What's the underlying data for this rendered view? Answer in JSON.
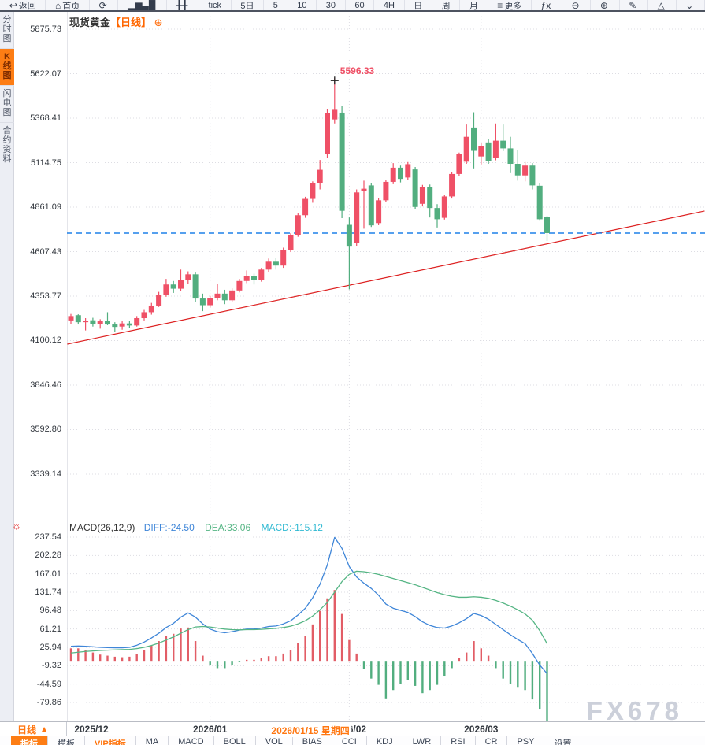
{
  "toolbar": {
    "items": [
      {
        "name": "back",
        "glyph": "↩",
        "label": "返回"
      },
      {
        "name": "home",
        "glyph": "⌂",
        "label": "首页"
      },
      {
        "name": "refresh",
        "glyph": "⟳",
        "label": ""
      },
      {
        "name": "line-chart",
        "glyph": "▂▆▄█",
        "label": ""
      },
      {
        "name": "candlestick",
        "glyph": "╂╂",
        "label": ""
      },
      {
        "name": "interval-tick",
        "glyph": "",
        "label": "tick"
      },
      {
        "name": "interval-5d",
        "glyph": "",
        "label": "5日"
      },
      {
        "name": "interval-5",
        "glyph": "",
        "label": "5"
      },
      {
        "name": "interval-10",
        "glyph": "",
        "label": "10"
      },
      {
        "name": "interval-30",
        "glyph": "",
        "label": "30"
      },
      {
        "name": "interval-60",
        "glyph": "",
        "label": "60"
      },
      {
        "name": "interval-4h",
        "glyph": "",
        "label": "4H"
      },
      {
        "name": "interval-day",
        "glyph": "",
        "label": "日"
      },
      {
        "name": "interval-week",
        "glyph": "",
        "label": "周"
      },
      {
        "name": "interval-month",
        "glyph": "",
        "label": "月"
      },
      {
        "name": "more",
        "glyph": "≡",
        "label": "更多"
      },
      {
        "name": "fx-indicator",
        "glyph": "ƒx",
        "label": ""
      },
      {
        "name": "zoom-out",
        "glyph": "⊖",
        "label": ""
      },
      {
        "name": "zoom-in",
        "glyph": "⊕",
        "label": ""
      },
      {
        "name": "draw-line",
        "glyph": "✎",
        "label": ""
      },
      {
        "name": "shape-triangle",
        "glyph": "△",
        "label": ""
      },
      {
        "name": "clipped-tool",
        "glyph": "⌄",
        "label": ""
      }
    ]
  },
  "sidebar": {
    "tabs": [
      {
        "label": "分时图",
        "active": false
      },
      {
        "label": "K线图",
        "active": true
      },
      {
        "label": "闪电图",
        "active": false
      },
      {
        "label": "合约资料",
        "active": false
      }
    ]
  },
  "header": {
    "symbol": "现货黄金",
    "period": "【日线】",
    "plus": "⊕"
  },
  "chart_data": [
    {
      "type": "candlestick",
      "title": "现货黄金 日线",
      "y_ticks": [
        5875.73,
        5622.07,
        5368.41,
        5114.75,
        4861.09,
        4607.43,
        4353.77,
        4100.12,
        3846.46,
        3592.8,
        3339.14
      ],
      "x_month_labels": [
        {
          "label": "2025/12",
          "index": 2.8,
          "line": false
        },
        {
          "label": "2026/01",
          "index": 19,
          "line": true
        },
        {
          "label": "2026/02",
          "index": 38,
          "line": true
        },
        {
          "label": "2026/03",
          "index": 56,
          "line": true
        }
      ],
      "candles": [
        [
          4215,
          4252,
          4196,
          4240
        ],
        [
          4245,
          4250,
          4192,
          4205
        ],
        [
          4205,
          4228,
          4158,
          4214
        ],
        [
          4216,
          4230,
          4180,
          4196
        ],
        [
          4196,
          4222,
          4168,
          4210
        ],
        [
          4212,
          4262,
          4188,
          4192
        ],
        [
          4192,
          4205,
          4150,
          4178
        ],
        [
          4180,
          4210,
          4162,
          4198
        ],
        [
          4198,
          4212,
          4170,
          4186
        ],
        [
          4186,
          4240,
          4180,
          4228
        ],
        [
          4228,
          4275,
          4215,
          4262
        ],
        [
          4262,
          4315,
          4248,
          4300
        ],
        [
          4300,
          4378,
          4292,
          4362
        ],
        [
          4362,
          4452,
          4350,
          4420
        ],
        [
          4420,
          4440,
          4372,
          4396
        ],
        [
          4396,
          4505,
          4385,
          4446
        ],
        [
          4446,
          4495,
          4425,
          4478
        ],
        [
          4478,
          4488,
          4322,
          4340
        ],
        [
          4340,
          4368,
          4268,
          4302
        ],
        [
          4302,
          4355,
          4288,
          4342
        ],
        [
          4342,
          4422,
          4330,
          4368
        ],
        [
          4368,
          4390,
          4308,
          4330
        ],
        [
          4330,
          4398,
          4322,
          4386
        ],
        [
          4386,
          4452,
          4375,
          4440
        ],
        [
          4440,
          4500,
          4428,
          4468
        ],
        [
          4468,
          4482,
          4420,
          4448
        ],
        [
          4448,
          4515,
          4436,
          4505
        ],
        [
          4505,
          4568,
          4492,
          4550
        ],
        [
          4550,
          4572,
          4505,
          4528
        ],
        [
          4528,
          4630,
          4515,
          4618
        ],
        [
          4618,
          4712,
          4605,
          4702
        ],
        [
          4702,
          4825,
          4692,
          4815
        ],
        [
          4815,
          4920,
          4800,
          4908
        ],
        [
          4908,
          5008,
          4886,
          4997
        ],
        [
          4997,
          5130,
          4962,
          5074
        ],
        [
          5165,
          5420,
          5140,
          5397
        ],
        [
          5361,
          5596.33,
          5338,
          5416
        ],
        [
          5400,
          5438,
          4798,
          4840
        ],
        [
          4760,
          4802,
          4392,
          4636
        ],
        [
          4657,
          4962,
          4640,
          4945
        ],
        [
          4955,
          5012,
          4738,
          4966
        ],
        [
          4985,
          4998,
          4748,
          4757
        ],
        [
          4770,
          4912,
          4758,
          4900
        ],
        [
          4900,
          5018,
          4888,
          5005
        ],
        [
          5005,
          5112,
          4992,
          5086
        ],
        [
          5086,
          5098,
          5002,
          5022
        ],
        [
          5030,
          5118,
          5018,
          5106
        ],
        [
          5076,
          5090,
          4852,
          4862
        ],
        [
          4880,
          4988,
          4865,
          4976
        ],
        [
          4976,
          4990,
          4802,
          4856
        ],
        [
          4856,
          4878,
          4745,
          4792
        ],
        [
          4800,
          4932,
          4790,
          4922
        ],
        [
          4922,
          5062,
          4910,
          5050
        ],
        [
          5050,
          5172,
          5038,
          5162
        ],
        [
          5120,
          5332,
          5108,
          5262
        ],
        [
          5315,
          5402,
          5082,
          5182
        ],
        [
          5150,
          5225,
          5105,
          5208
        ],
        [
          5230,
          5248,
          5108,
          5122
        ],
        [
          5140,
          5338,
          5128,
          5240
        ],
        [
          5240,
          5332,
          5180,
          5196
        ],
        [
          5196,
          5262,
          5055,
          5108
        ],
        [
          5108,
          5185,
          5012,
          5042
        ],
        [
          5042,
          5118,
          5008,
          5098
        ],
        [
          5098,
          5112,
          4962,
          4985
        ],
        [
          4983,
          4998,
          4788,
          4792
        ],
        [
          4806,
          4812,
          4668,
          4713
        ]
      ],
      "annotations": {
        "peak_label": "5596.33",
        "peak_index": 36,
        "peak_price": 5596.33,
        "current_price_line": 4713,
        "trendline": {
          "i1": -0.5,
          "p1": 4080,
          "i2": 86.5,
          "p2": 4839
        }
      },
      "colors": {
        "up": "#ef5066",
        "down": "#52ae7f",
        "trend": "#dd2222",
        "current": "#1e80e8",
        "grid": "#dddde3"
      }
    },
    {
      "type": "macd",
      "title": "MACD(26,12,9)",
      "values": {
        "diff": "DIFF:-24.50",
        "dea": "DEA:33.06",
        "macd": "MACD:-115.12"
      },
      "y_ticks": [
        237.54,
        202.28,
        167.01,
        131.74,
        96.48,
        61.21,
        25.94,
        -9.32,
        -44.59,
        -79.86
      ],
      "diff": [
        28,
        28.5,
        28,
        27,
        26,
        25.5,
        25,
        25,
        26,
        30,
        36,
        44,
        53,
        64,
        72,
        84,
        92,
        84,
        71,
        61,
        56,
        54,
        56,
        59,
        61,
        61,
        63,
        66,
        67,
        71,
        77,
        88,
        101,
        121,
        147,
        184,
        237,
        216,
        181,
        161,
        149,
        139,
        126,
        109,
        101,
        97,
        93,
        85,
        75,
        68,
        64,
        63,
        67,
        73,
        81,
        91,
        87,
        80,
        70,
        60,
        50,
        41,
        33,
        14,
        -8,
        -24.5
      ],
      "dea": [
        15,
        16.5,
        18,
        19,
        20,
        20.5,
        21,
        21.5,
        22,
        23.5,
        26,
        29.5,
        34,
        40,
        46,
        53,
        60,
        65,
        66,
        65,
        63,
        61,
        60,
        59.5,
        60,
        60,
        60.5,
        61.5,
        62.5,
        64,
        66.5,
        71,
        77,
        86,
        98,
        112,
        132,
        152,
        166,
        172,
        171,
        169,
        166,
        162,
        158,
        154,
        150,
        146,
        141,
        136,
        131,
        127,
        124,
        122,
        122,
        123,
        122,
        120,
        116,
        111,
        105,
        98,
        90,
        78,
        58,
        33.06
      ],
      "bar": [
        24,
        24,
        20,
        16,
        12,
        10,
        8,
        7,
        8,
        13,
        20,
        29,
        38,
        48,
        52,
        62,
        64,
        38,
        10,
        -8,
        -14,
        -14,
        -8,
        -1,
        2,
        2,
        5,
        9,
        9,
        14,
        21,
        34,
        48,
        70,
        96,
        120,
        136,
        90,
        40,
        14,
        -16,
        -34,
        -46,
        -72,
        -56,
        -44,
        -36,
        -48,
        -62,
        -56,
        -46,
        -30,
        -14,
        5,
        16,
        38,
        24,
        10,
        -14,
        -34,
        -44,
        -50,
        -56,
        -74,
        -92,
        -115.12
      ],
      "colors": {
        "diff": "#3f86d8",
        "dea": "#55b584",
        "pos": "#e25d66",
        "neg": "#52ae7f",
        "grid": "#dddde3"
      }
    }
  ],
  "date_axis": {
    "period_label": "日线",
    "period_arrow": "▲",
    "crosshair": {
      "label": "2026/01/15 星期四",
      "index": 32.7
    }
  },
  "bottom_tabs": {
    "items": [
      {
        "label": "指标",
        "style": "active"
      },
      {
        "label": "模板",
        "style": "normal"
      },
      {
        "label": "VIP指标",
        "style": "vip"
      },
      {
        "label": "MA",
        "style": "normal"
      },
      {
        "label": "MACD",
        "style": "normal"
      },
      {
        "label": "BOLL",
        "style": "normal"
      },
      {
        "label": "VOL",
        "style": "normal"
      },
      {
        "label": "BIAS",
        "style": "normal"
      },
      {
        "label": "CCI",
        "style": "normal"
      },
      {
        "label": "KDJ",
        "style": "normal"
      },
      {
        "label": "LWR",
        "style": "normal"
      },
      {
        "label": "RSI",
        "style": "normal"
      },
      {
        "label": "CR",
        "style": "normal"
      },
      {
        "label": "PSY",
        "style": "normal"
      },
      {
        "label": "设置",
        "style": "normal"
      }
    ]
  },
  "watermark": "FX678"
}
